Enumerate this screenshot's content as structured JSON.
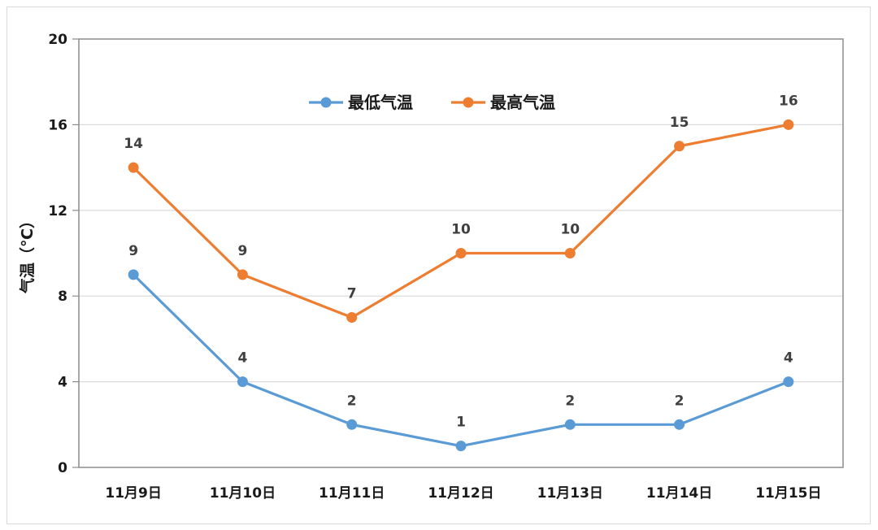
{
  "chart_data": {
    "type": "line",
    "title": "",
    "xlabel": "",
    "ylabel": "气温（℃）",
    "categories": [
      "11月9日",
      "11月10日",
      "11月11日",
      "11月12日",
      "11月13日",
      "11月14日",
      "11月15日"
    ],
    "series": [
      {
        "name": "最低气温",
        "color": "#5b9bd5",
        "values": [
          9,
          4,
          2,
          1,
          2,
          2,
          4
        ]
      },
      {
        "name": "最高气温",
        "color": "#ed7d31",
        "values": [
          14,
          9,
          7,
          10,
          10,
          15,
          16
        ]
      }
    ],
    "ylim": [
      0,
      20
    ],
    "yticks": [
      0,
      4,
      8,
      12,
      16,
      20
    ],
    "grid": true,
    "legend_position": "top-inside",
    "data_labels": true
  }
}
